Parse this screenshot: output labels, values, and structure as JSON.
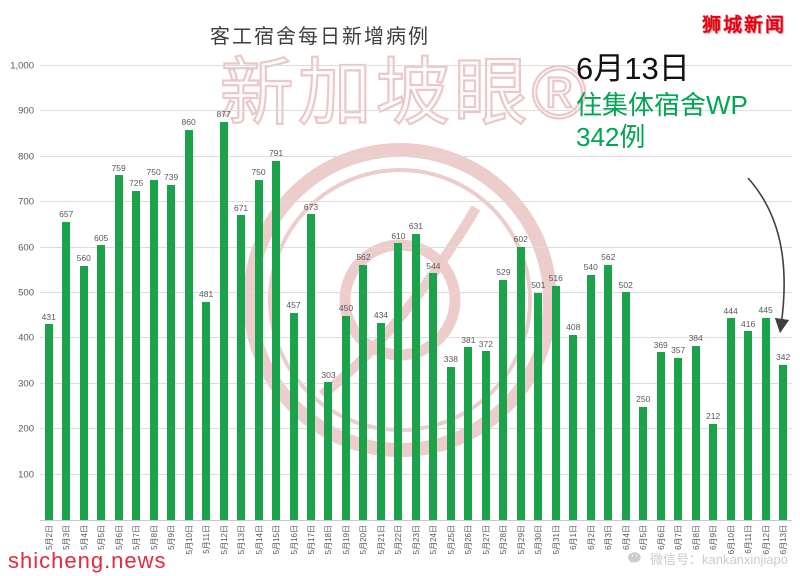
{
  "header": {
    "brand": "狮城新闻"
  },
  "watermark": {
    "text": "新加坡眼®"
  },
  "annotation": {
    "date": "6月13日",
    "line2": "住集体宿舍WP",
    "line3": "342例"
  },
  "footer": {
    "site": "shicheng.news",
    "wechat": "微信号：kankanxinjiapo"
  },
  "colors": {
    "bar": "#1aa34b",
    "brand_red": "#e60012",
    "annotation_green": "#00a651",
    "site_red": "#e8283c",
    "watermark_pink": "#dfa3a3",
    "footer_gray": "#cccccc"
  },
  "chart_data": {
    "type": "bar",
    "title": "客工宿舍每日新增病例",
    "categories": [
      "5月2日",
      "5月3日",
      "5月4日",
      "5月5日",
      "5月6日",
      "5月7日",
      "5月8日",
      "5月9日",
      "5月10日",
      "5月11日",
      "5月12日",
      "5月13日",
      "5月14日",
      "5月15日",
      "5月16日",
      "5月17日",
      "5月18日",
      "5月19日",
      "5月20日",
      "5月21日",
      "5月22日",
      "5月23日",
      "5月24日",
      "5月25日",
      "5月26日",
      "5月27日",
      "5月28日",
      "5月29日",
      "5月30日",
      "5月31日",
      "6月1日",
      "6月2日",
      "6月3日",
      "6月4日",
      "6月5日",
      "6月6日",
      "6月7日",
      "6月8日",
      "6月9日",
      "6月10日",
      "6月11日",
      "6月12日",
      "6月13日"
    ],
    "values": [
      431,
      657,
      560,
      605,
      759,
      725,
      750,
      739,
      860,
      481,
      877,
      671,
      750,
      791,
      457,
      673,
      303,
      450,
      562,
      434,
      610,
      631,
      544,
      338,
      381,
      372,
      529,
      602,
      501,
      516,
      408,
      540,
      562,
      502,
      250,
      369,
      357,
      384,
      212,
      444,
      416,
      445,
      342
    ],
    "xlabel": "",
    "ylabel": "",
    "ylim": [
      0,
      1000
    ],
    "ytick_interval": 100,
    "grid": true,
    "legend": null
  }
}
